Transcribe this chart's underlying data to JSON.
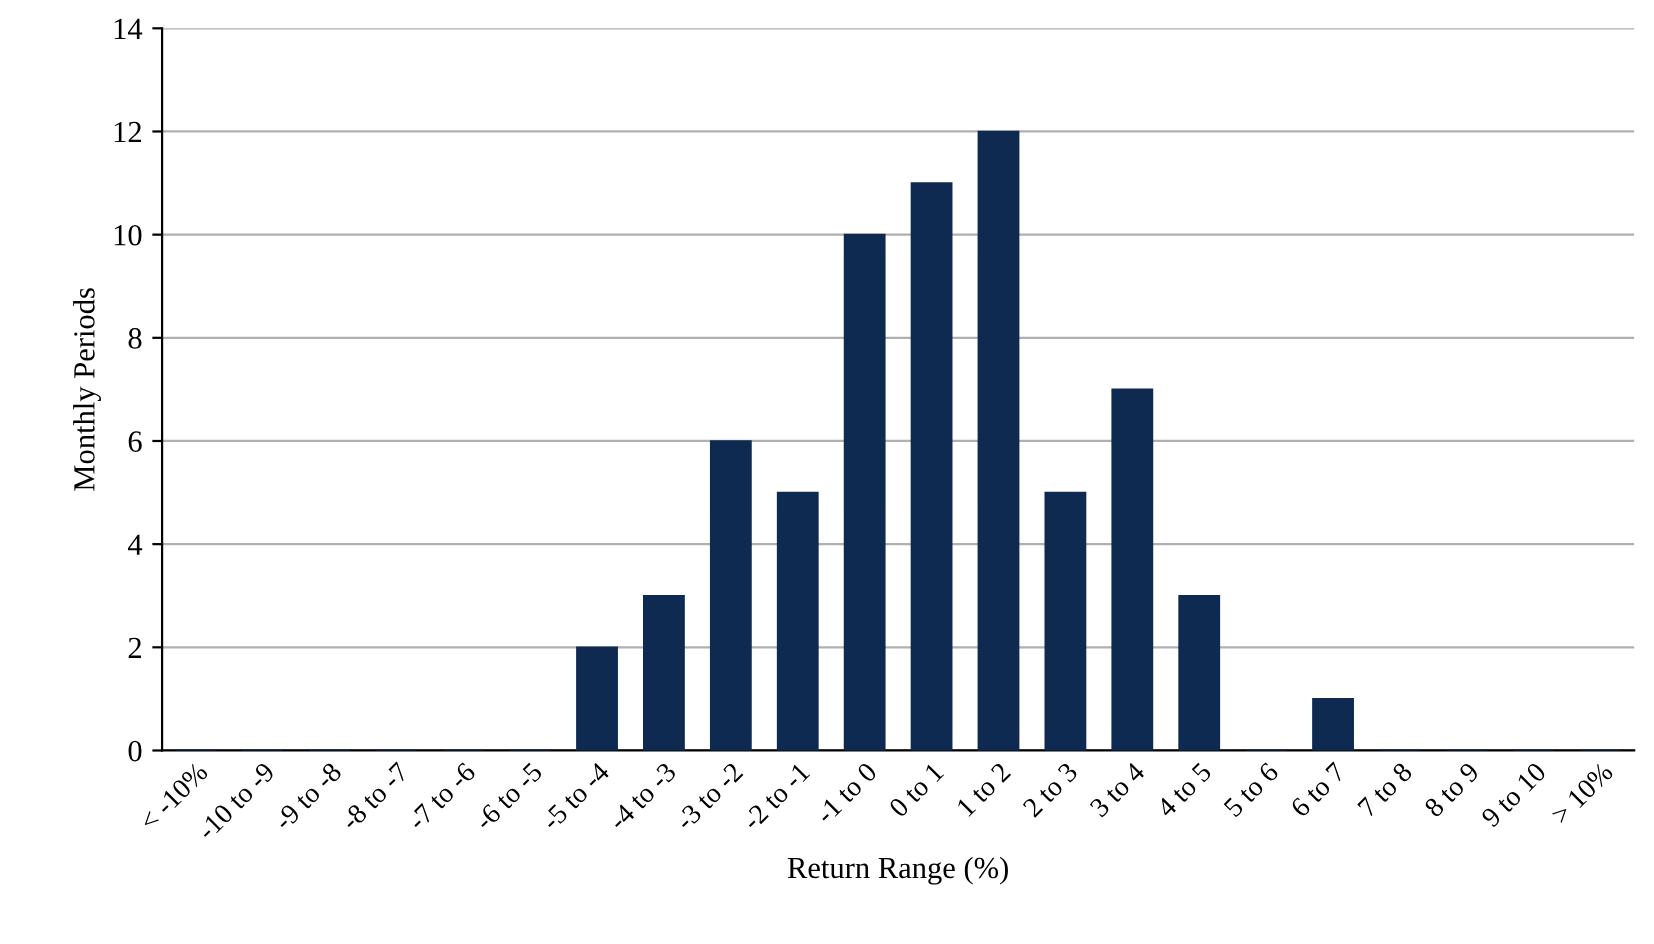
{
  "chart_data": {
    "type": "bar",
    "xlabel": "Return Range (%)",
    "ylabel": "Monthly Periods",
    "categories": [
      "< -10%",
      "-10 to -9",
      "-9 to -8",
      "-8 to -7",
      "-7 to -6",
      "-6 to -5",
      "-5 to -4",
      "-4 to -3",
      "-3 to -2",
      "-2 to -1",
      "-1 to 0",
      "0 to 1",
      "1 to 2",
      "2 to 3",
      "3 to 4",
      "4 to 5",
      "5 to 6",
      "6 to 7",
      "7 to 8",
      "8 to 9",
      "9 to 10",
      "> 10%"
    ],
    "values": [
      0,
      0,
      0,
      0,
      0,
      0,
      2,
      3,
      6,
      5,
      10,
      11,
      12,
      5,
      7,
      3,
      0,
      1,
      0,
      0,
      0,
      0
    ],
    "color": "#0f2a50",
    "ylim": [
      0,
      14
    ],
    "yticks": [
      0,
      2,
      4,
      6,
      8,
      10,
      12,
      14
    ],
    "grid": "y"
  }
}
